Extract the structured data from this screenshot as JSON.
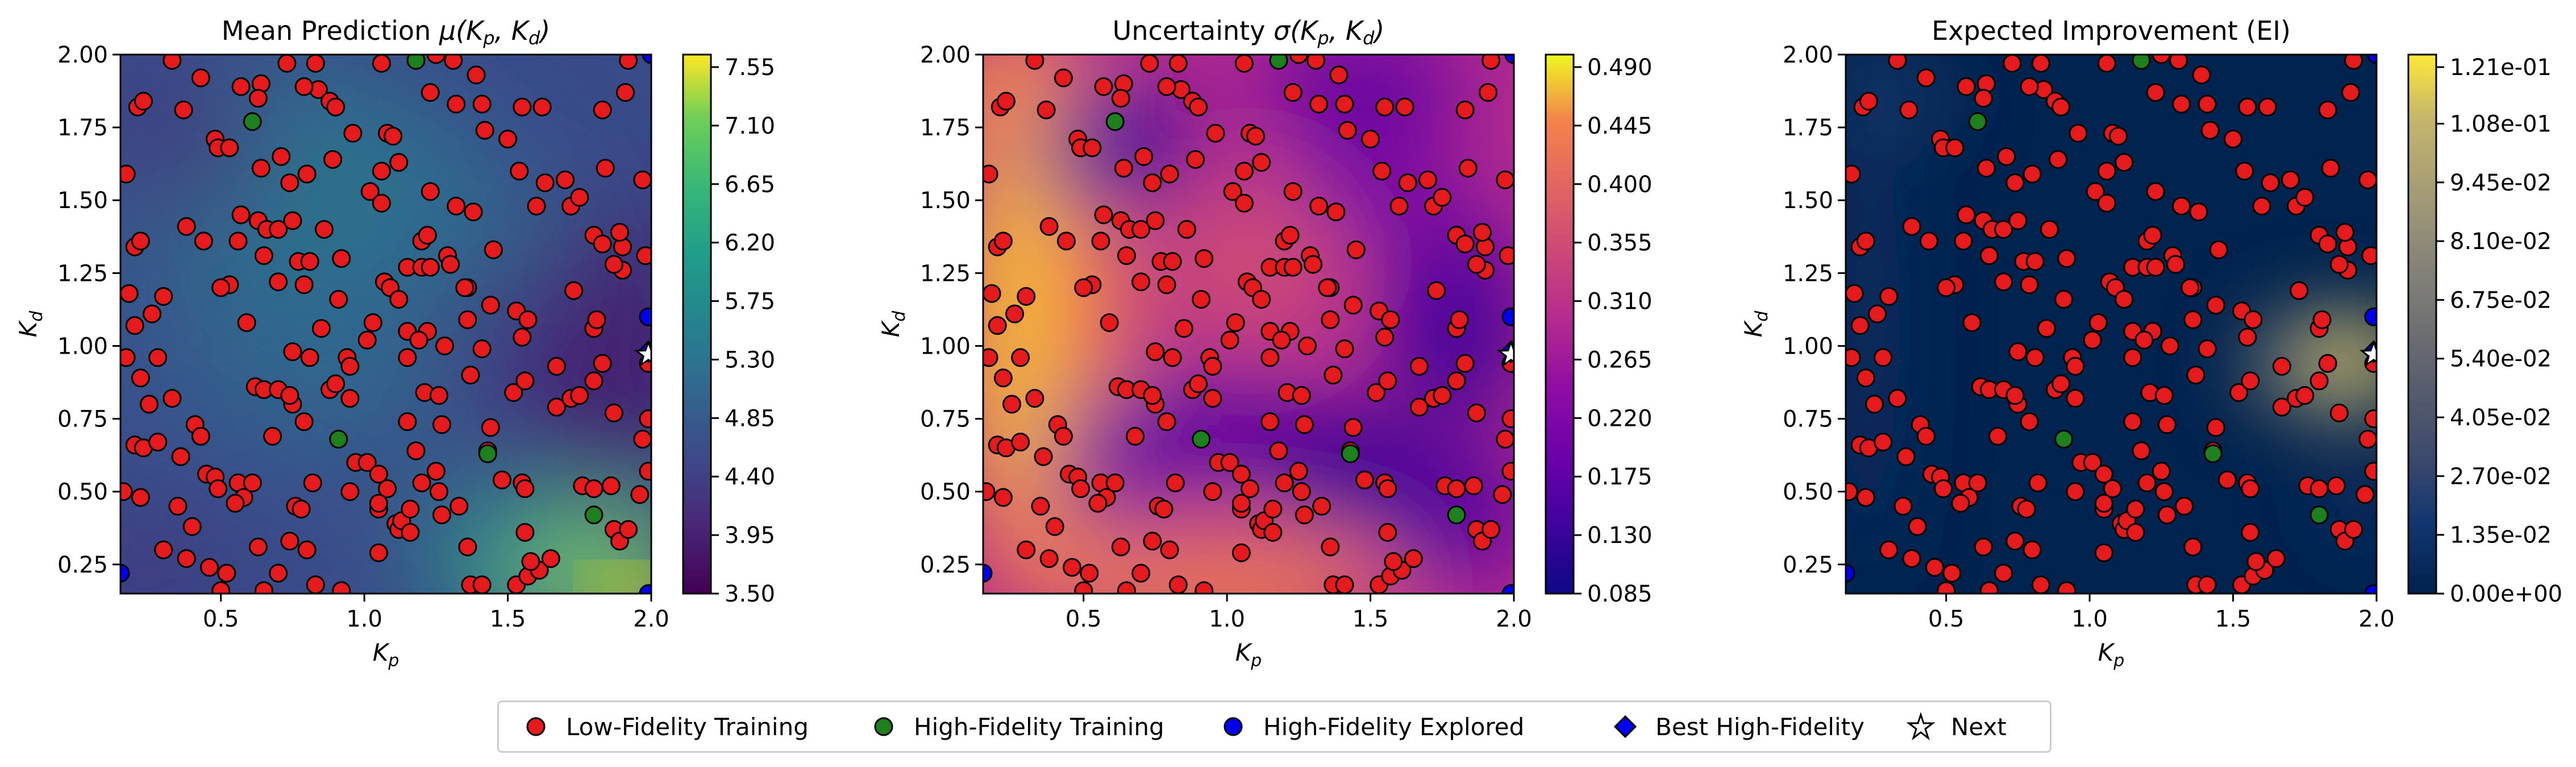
{
  "chart_data": [
    {
      "type": "heatmap",
      "title": "Mean Prediction μ(K_p, K_d)",
      "title_parts": [
        "Mean Prediction ",
        "μ(",
        "K",
        "p",
        ", ",
        "K",
        "d",
        ")"
      ],
      "xlabel": "K_p",
      "ylabel": "K_d",
      "xlim": [
        0.15,
        2.0
      ],
      "ylim": [
        0.15,
        2.0
      ],
      "xticks": [
        "0.5",
        "1.0",
        "1.5",
        "2.0"
      ],
      "yticks": [
        "0.25",
        "0.50",
        "0.75",
        "1.00",
        "1.25",
        "1.50",
        "1.75",
        "2.00"
      ],
      "colormap": "viridis",
      "colorbar_range": [
        3.5,
        7.55
      ],
      "colorbar_ticks": [
        "3.50",
        "3.95",
        "4.40",
        "4.85",
        "5.30",
        "5.75",
        "6.20",
        "6.65",
        "7.10",
        "7.55"
      ]
    },
    {
      "type": "heatmap",
      "title": "Uncertainty σ(K_p, K_d)",
      "title_parts": [
        "Uncertainty ",
        "σ(",
        "K",
        "p",
        ", ",
        "K",
        "d",
        ")"
      ],
      "xlabel": "K_p",
      "ylabel": "K_d",
      "xlim": [
        0.15,
        2.0
      ],
      "ylim": [
        0.15,
        2.0
      ],
      "xticks": [
        "0.5",
        "1.0",
        "1.5",
        "2.0"
      ],
      "yticks": [
        "0.25",
        "0.50",
        "0.75",
        "1.00",
        "1.25",
        "1.50",
        "1.75",
        "2.00"
      ],
      "colormap": "plasma",
      "colorbar_range": [
        0.085,
        0.49
      ],
      "colorbar_ticks": [
        "0.085",
        "0.130",
        "0.175",
        "0.220",
        "0.265",
        "0.310",
        "0.355",
        "0.400",
        "0.445",
        "0.490"
      ]
    },
    {
      "type": "heatmap",
      "title": "Expected Improvement (EI)",
      "title_parts": [
        "Expected Improvement (EI)",
        "",
        "",
        "",
        "",
        "",
        "",
        ""
      ],
      "xlabel": "K_p",
      "ylabel": "K_d",
      "xlim": [
        0.15,
        2.0
      ],
      "ylim": [
        0.15,
        2.0
      ],
      "xticks": [
        "0.5",
        "1.0",
        "1.5",
        "2.0"
      ],
      "yticks": [
        "0.25",
        "0.50",
        "0.75",
        "1.00",
        "1.25",
        "1.50",
        "1.75",
        "2.00"
      ],
      "colormap": "cividis",
      "colorbar_range": [
        0,
        0.121
      ],
      "colorbar_ticks": [
        "0.00e+00",
        "1.35e-02",
        "2.70e-02",
        "4.05e-02",
        "5.40e-02",
        "6.75e-02",
        "8.10e-02",
        "9.45e-02",
        "1.08e-01",
        "1.21e-01"
      ]
    }
  ],
  "points": {
    "low_fidelity": [
      [
        0.17,
        1.59
      ],
      [
        0.21,
        1.82
      ],
      [
        0.23,
        1.84
      ],
      [
        0.2,
        1.34
      ],
      [
        0.22,
        1.36
      ],
      [
        0.18,
        1.18
      ],
      [
        0.26,
        1.11
      ],
      [
        0.2,
        1.07
      ],
      [
        0.3,
        1.17
      ],
      [
        0.17,
        0.96
      ],
      [
        0.28,
        0.96
      ],
      [
        0.22,
        0.89
      ],
      [
        0.25,
        0.8
      ],
      [
        0.33,
        0.82
      ],
      [
        0.41,
        0.73
      ],
      [
        0.2,
        0.66
      ],
      [
        0.23,
        0.65
      ],
      [
        0.36,
        0.62
      ],
      [
        0.43,
        0.69
      ],
      [
        0.16,
        0.5
      ],
      [
        0.22,
        0.48
      ],
      [
        0.35,
        0.45
      ],
      [
        0.45,
        0.56
      ],
      [
        0.48,
        0.55
      ],
      [
        0.49,
        0.51
      ],
      [
        0.4,
        0.38
      ],
      [
        0.3,
        0.3
      ],
      [
        0.38,
        0.27
      ],
      [
        0.46,
        0.24
      ],
      [
        0.52,
        0.22
      ],
      [
        0.5,
        0.16
      ],
      [
        0.56,
        0.53
      ],
      [
        0.58,
        0.48
      ],
      [
        0.55,
        0.46
      ],
      [
        0.61,
        0.53
      ],
      [
        0.63,
        0.31
      ],
      [
        0.65,
        0.16
      ],
      [
        0.7,
        0.22
      ],
      [
        0.74,
        0.33
      ],
      [
        0.76,
        0.45
      ],
      [
        0.78,
        0.44
      ],
      [
        0.8,
        0.3
      ],
      [
        0.83,
        0.18
      ],
      [
        0.92,
        0.16
      ],
      [
        0.33,
        1.98
      ],
      [
        0.43,
        1.92
      ],
      [
        0.37,
        1.81
      ],
      [
        0.48,
        1.71
      ],
      [
        0.49,
        1.68
      ],
      [
        0.38,
        1.41
      ],
      [
        0.44,
        1.36
      ],
      [
        0.53,
        1.68
      ],
      [
        0.57,
        1.89
      ],
      [
        0.64,
        1.9
      ],
      [
        0.63,
        1.85
      ],
      [
        0.57,
        1.45
      ],
      [
        0.56,
        1.36
      ],
      [
        0.63,
        1.43
      ],
      [
        0.53,
        1.21
      ],
      [
        0.5,
        1.2
      ],
      [
        0.59,
        1.08
      ],
      [
        0.62,
        0.86
      ],
      [
        0.65,
        0.85
      ],
      [
        0.7,
        0.85
      ],
      [
        0.75,
        0.8
      ],
      [
        0.74,
        0.83
      ],
      [
        0.79,
        0.74
      ],
      [
        0.68,
        0.69
      ],
      [
        0.88,
        0.85
      ],
      [
        0.82,
        0.53
      ],
      [
        0.64,
        1.61
      ],
      [
        0.71,
        1.65
      ],
      [
        0.74,
        1.56
      ],
      [
        0.8,
        1.59
      ],
      [
        0.65,
        1.31
      ],
      [
        0.66,
        1.4
      ],
      [
        0.7,
        1.4
      ],
      [
        0.75,
        1.43
      ],
      [
        0.7,
        1.22
      ],
      [
        0.77,
        1.29
      ],
      [
        0.79,
        1.21
      ],
      [
        0.75,
        0.98
      ],
      [
        0.81,
        1.29
      ],
      [
        0.86,
        1.4
      ],
      [
        0.92,
        1.3
      ],
      [
        0.81,
        0.96
      ],
      [
        0.85,
        1.06
      ],
      [
        0.91,
        1.16
      ],
      [
        0.9,
        0.87
      ],
      [
        0.94,
        0.96
      ],
      [
        0.95,
        0.93
      ],
      [
        0.95,
        0.82
      ],
      [
        0.97,
        0.6
      ],
      [
        1.01,
        0.6
      ],
      [
        1.05,
        0.56
      ],
      [
        1.08,
        0.51
      ],
      [
        0.95,
        0.5
      ],
      [
        1.05,
        0.44
      ],
      [
        1.11,
        0.39
      ],
      [
        1.12,
        0.37
      ],
      [
        1.13,
        0.4
      ],
      [
        1.16,
        0.44
      ],
      [
        1.05,
        0.29
      ],
      [
        0.73,
        1.97
      ],
      [
        0.83,
        1.97
      ],
      [
        0.84,
        1.88
      ],
      [
        0.88,
        1.84
      ],
      [
        0.79,
        1.89
      ],
      [
        0.9,
        1.82
      ],
      [
        0.96,
        1.73
      ],
      [
        1.08,
        1.73
      ],
      [
        1.1,
        1.72
      ],
      [
        0.89,
        1.64
      ],
      [
        1.02,
        1.53
      ],
      [
        1.06,
        1.6
      ],
      [
        1.12,
        1.63
      ],
      [
        1.06,
        1.49
      ],
      [
        1.07,
        1.22
      ],
      [
        1.09,
        1.2
      ],
      [
        1.01,
        1.02
      ],
      [
        1.03,
        1.08
      ],
      [
        1.12,
        1.16
      ],
      [
        1.15,
        1.27
      ],
      [
        1.2,
        1.27
      ],
      [
        1.23,
        1.27
      ],
      [
        1.15,
        1.05
      ],
      [
        1.22,
        1.05
      ],
      [
        1.19,
        1.02
      ],
      [
        1.15,
        0.96
      ],
      [
        1.21,
        0.84
      ],
      [
        1.26,
        0.83
      ],
      [
        1.27,
        0.73
      ],
      [
        1.15,
        0.74
      ],
      [
        1.18,
        0.64
      ],
      [
        1.25,
        0.57
      ],
      [
        1.2,
        0.53
      ],
      [
        1.26,
        0.5
      ],
      [
        1.33,
        0.45
      ],
      [
        1.36,
        0.31
      ],
      [
        1.27,
        0.42
      ],
      [
        1.05,
        0.46
      ],
      [
        1.16,
        0.36
      ],
      [
        1.37,
        0.18
      ],
      [
        1.41,
        0.18
      ],
      [
        1.53,
        0.18
      ],
      [
        1.57,
        0.21
      ],
      [
        1.61,
        0.23
      ],
      [
        1.65,
        0.27
      ],
      [
        1.58,
        0.26
      ],
      [
        1.25,
        2.0
      ],
      [
        1.23,
        1.87
      ],
      [
        1.32,
        1.83
      ],
      [
        1.23,
        1.53
      ],
      [
        1.32,
        1.48
      ],
      [
        1.2,
        1.36
      ],
      [
        1.29,
        1.31
      ],
      [
        1.38,
        1.46
      ],
      [
        1.42,
        1.74
      ],
      [
        1.5,
        1.71
      ],
      [
        1.54,
        1.6
      ],
      [
        1.45,
        1.33
      ],
      [
        1.36,
        1.2
      ],
      [
        1.36,
        1.09
      ],
      [
        1.28,
        1.0
      ],
      [
        1.35,
        1.2
      ],
      [
        1.3,
        1.28
      ],
      [
        1.44,
        1.14
      ],
      [
        1.53,
        1.12
      ],
      [
        1.57,
        1.09
      ],
      [
        1.55,
        1.03
      ],
      [
        1.41,
        0.99
      ],
      [
        1.37,
        0.9
      ],
      [
        1.52,
        0.84
      ],
      [
        1.56,
        0.88
      ],
      [
        1.44,
        0.72
      ],
      [
        1.43,
        0.64
      ],
      [
        1.48,
        0.54
      ],
      [
        1.55,
        0.53
      ],
      [
        1.56,
        0.36
      ],
      [
        1.56,
        0.51
      ],
      [
        1.31,
        1.98
      ],
      [
        1.39,
        1.93
      ],
      [
        1.41,
        1.83
      ],
      [
        1.55,
        1.82
      ],
      [
        1.62,
        1.82
      ],
      [
        1.63,
        1.56
      ],
      [
        1.7,
        1.57
      ],
      [
        1.6,
        1.48
      ],
      [
        1.72,
        1.48
      ],
      [
        1.75,
        1.51
      ],
      [
        1.84,
        1.61
      ],
      [
        1.8,
        1.38
      ],
      [
        1.9,
        1.26
      ],
      [
        1.83,
        1.35
      ],
      [
        1.9,
        1.34
      ],
      [
        1.89,
        1.39
      ],
      [
        1.73,
        1.19
      ],
      [
        1.8,
        1.06
      ],
      [
        1.81,
        1.09
      ],
      [
        1.67,
        0.93
      ],
      [
        1.67,
        0.79
      ],
      [
        1.72,
        0.82
      ],
      [
        1.75,
        0.83
      ],
      [
        1.8,
        0.88
      ],
      [
        1.83,
        0.94
      ],
      [
        1.87,
        0.77
      ],
      [
        1.76,
        0.52
      ],
      [
        1.8,
        0.51
      ],
      [
        1.86,
        0.52
      ],
      [
        1.87,
        0.37
      ],
      [
        1.89,
        0.33
      ],
      [
        1.92,
        0.37
      ],
      [
        1.96,
        0.49
      ],
      [
        1.99,
        0.57
      ],
      [
        1.97,
        0.68
      ],
      [
        1.99,
        0.75
      ],
      [
        1.91,
        1.87
      ],
      [
        1.97,
        1.57
      ],
      [
        1.98,
        1.31
      ],
      [
        1.99,
        0.94
      ],
      [
        1.92,
        1.98
      ],
      [
        1.83,
        1.81
      ],
      [
        1.06,
        1.97
      ],
      [
        1.22,
        1.38
      ],
      [
        1.87,
        1.28
      ],
      [
        0.28,
        0.67
      ]
    ],
    "high_fidelity": [
      [
        0.61,
        1.77
      ],
      [
        1.18,
        1.98
      ],
      [
        0.91,
        0.68
      ],
      [
        1.43,
        0.63
      ],
      [
        1.8,
        0.42
      ]
    ],
    "high_fidelity_explored": [
      [
        0.15,
        0.22
      ],
      [
        1.99,
        1.1
      ],
      [
        1.99,
        0.15
      ],
      [
        2.0,
        2.0
      ]
    ],
    "best_high_fidelity": [
      [
        1.99,
        0.98
      ]
    ],
    "next": [
      [
        1.99,
        0.97
      ]
    ]
  },
  "legend": [
    {
      "label": "Low-Fidelity Training",
      "color": "#e41a1c",
      "marker": "circle"
    },
    {
      "label": "High-Fidelity Training",
      "color": "#1e7f1e",
      "marker": "circle"
    },
    {
      "label": "High-Fidelity Explored",
      "color": "#0000ee",
      "marker": "circle"
    },
    {
      "label": "Best High-Fidelity",
      "color": "#0000ee",
      "marker": "diamond"
    },
    {
      "label": "Next",
      "color": "#ffffff",
      "marker": "star"
    }
  ]
}
